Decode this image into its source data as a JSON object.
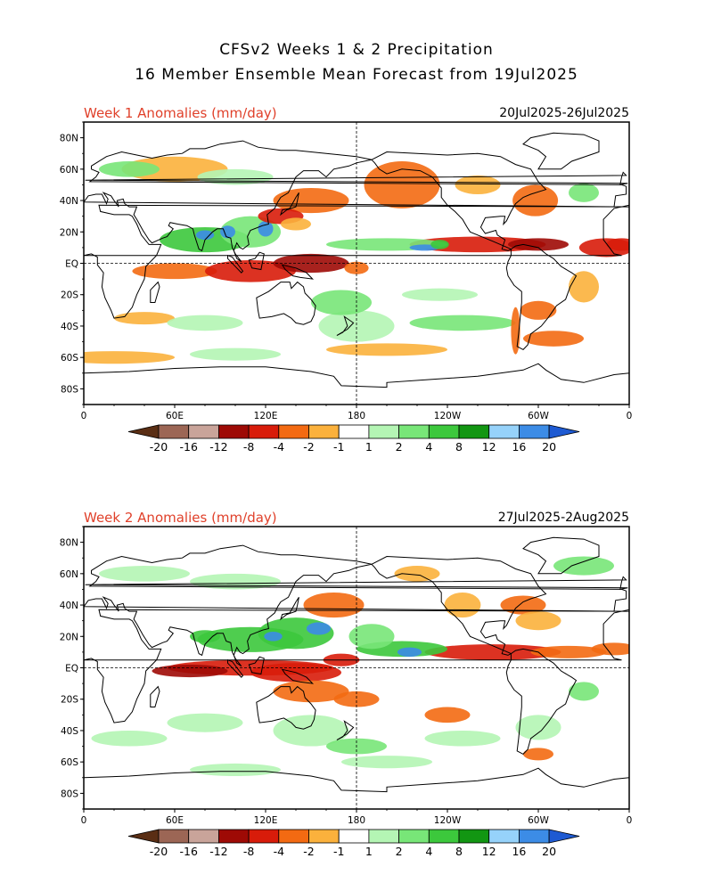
{
  "header": {
    "title_line1": "CFSv2 Weeks 1 & 2 Precipitation",
    "title_line2": "16 Member Ensemble Mean Forecast from 19Jul2025"
  },
  "panels": [
    {
      "label": "Week 1 Anomalies (mm/day)",
      "dates": "20Jul2025-26Jul2025"
    },
    {
      "label": "Week 2 Anomalies (mm/day)",
      "dates": "27Jul2025-2Aug2025"
    }
  ],
  "axes": {
    "lat_labels": [
      "80N",
      "60N",
      "40N",
      "20N",
      "EQ",
      "20S",
      "40S",
      "60S",
      "80S"
    ],
    "lat_values": [
      80,
      60,
      40,
      20,
      0,
      -20,
      -40,
      -60,
      -80
    ],
    "lon_labels": [
      "0",
      "60E",
      "120E",
      "180",
      "120W",
      "60W",
      "0"
    ],
    "lon_values": [
      0,
      60,
      120,
      180,
      240,
      300,
      360
    ]
  },
  "colorbar": {
    "tick_labels": [
      "-20",
      "-16",
      "-12",
      "-8",
      "-4",
      "-2",
      "-1",
      "1",
      "2",
      "4",
      "8",
      "12",
      "16",
      "20"
    ],
    "colors": [
      "#5a2e14",
      "#9c6655",
      "#c9a49a",
      "#9e0a05",
      "#d81c0a",
      "#f36a12",
      "#fbb13c",
      "#ffffff",
      "#b4f5b4",
      "#78e678",
      "#3cc83c",
      "#129612",
      "#96d2fa",
      "#3c8ce6",
      "#1e5ad2"
    ]
  },
  "map_colors": {
    "dry_light": "#fbb13c",
    "dry_mid": "#f36a12",
    "dry_strong": "#d81c0a",
    "dry_extreme": "#9e0a05",
    "wet_light": "#b4f5b4",
    "wet_mid": "#78e678",
    "wet_strong": "#3cc83c",
    "wet_extreme": "#3c8ce6"
  }
}
